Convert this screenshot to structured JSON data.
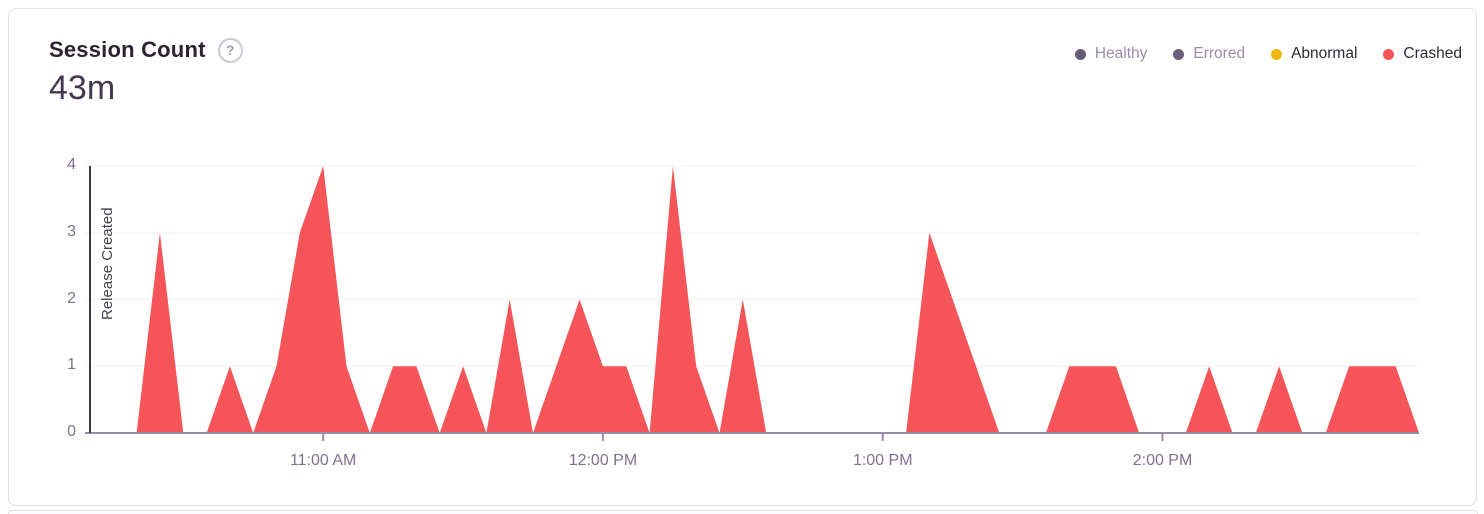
{
  "card": {
    "title": "Session Count",
    "help_glyph": "?",
    "total": "43m"
  },
  "legend": {
    "items": [
      {
        "label": "Healthy",
        "color": "#675c75",
        "label_color": "#9a8bab",
        "active": false
      },
      {
        "label": "Errored",
        "color": "#6a5e78",
        "label_color": "#9a8bab",
        "active": false
      },
      {
        "label": "Abnormal",
        "color": "#f1b712",
        "label_color": "#2f2936",
        "active": true
      },
      {
        "label": "Crashed",
        "color": "#f55459",
        "label_color": "#2f2936",
        "active": true
      }
    ]
  },
  "chart_data": {
    "type": "area",
    "title": "Session Count",
    "total_label": "43m",
    "x": [
      "10:10 AM",
      "10:15 AM",
      "10:20 AM",
      "10:25 AM",
      "10:30 AM",
      "10:35 AM",
      "10:40 AM",
      "10:45 AM",
      "10:50 AM",
      "10:55 AM",
      "11:00 AM",
      "11:05 AM",
      "11:10 AM",
      "11:15 AM",
      "11:20 AM",
      "11:25 AM",
      "11:30 AM",
      "11:35 AM",
      "11:40 AM",
      "11:45 AM",
      "11:50 AM",
      "11:55 AM",
      "12:00 PM",
      "12:05 PM",
      "12:10 PM",
      "12:15 PM",
      "12:20 PM",
      "12:25 PM",
      "12:30 PM",
      "12:35 PM",
      "12:40 PM",
      "12:45 PM",
      "12:50 PM",
      "12:55 PM",
      "1:00 PM",
      "1:05 PM",
      "1:10 PM",
      "1:15 PM",
      "1:20 PM",
      "1:25 PM",
      "1:30 PM",
      "1:35 PM",
      "1:40 PM",
      "1:45 PM",
      "1:50 PM",
      "1:55 PM",
      "2:00 PM",
      "2:05 PM",
      "2:10 PM",
      "2:15 PM",
      "2:20 PM",
      "2:25 PM",
      "2:30 PM",
      "2:35 PM",
      "2:40 PM",
      "2:45 PM",
      "2:50 PM",
      "2:55 PM"
    ],
    "series": [
      {
        "name": "Crashed",
        "color": "#f55459",
        "values": [
          0,
          0,
          0,
          3,
          0,
          0,
          1,
          0,
          1,
          3,
          4,
          1,
          0,
          1,
          1,
          0,
          1,
          0,
          2,
          0,
          1,
          2,
          1,
          1,
          0,
          4,
          1,
          0,
          2,
          0,
          0,
          0,
          0,
          0,
          0,
          0,
          3,
          2,
          1,
          0,
          0,
          0,
          1,
          1,
          1,
          0,
          0,
          0,
          1,
          0,
          0,
          1,
          0,
          0,
          1,
          1,
          1,
          0
        ]
      }
    ],
    "x_tick_labels": [
      "11:00 AM",
      "12:00 PM",
      "1:00 PM",
      "2:00 PM"
    ],
    "y_ticks": [
      0,
      1,
      2,
      3,
      4
    ],
    "ylim": [
      0,
      4
    ],
    "grid": true,
    "legend_position": "top-right",
    "annotation": {
      "label": "Release Created",
      "x": "10:10 AM"
    }
  }
}
